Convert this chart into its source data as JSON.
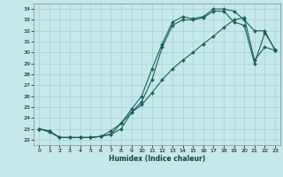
{
  "xlabel": "Humidex (Indice chaleur)",
  "bg_color": "#c5e8e8",
  "grid_color": "#a8d0d0",
  "line_color": "#1a6060",
  "xlim": [
    -0.5,
    23.5
  ],
  "ylim": [
    21.5,
    34.5
  ],
  "xticks": [
    0,
    1,
    2,
    3,
    4,
    5,
    6,
    7,
    8,
    9,
    10,
    11,
    12,
    13,
    14,
    15,
    16,
    17,
    18,
    19,
    20,
    21,
    22,
    23
  ],
  "yticks": [
    22,
    23,
    24,
    25,
    26,
    27,
    28,
    29,
    30,
    31,
    32,
    33,
    34
  ],
  "line1_x": [
    0,
    1,
    2,
    3,
    4,
    5,
    6,
    7,
    8,
    9,
    10,
    11,
    12,
    13,
    14,
    15,
    16,
    17,
    18,
    19,
    20,
    21,
    22,
    23
  ],
  "line1_y": [
    23.0,
    22.8,
    22.2,
    22.2,
    22.2,
    22.2,
    22.3,
    22.5,
    23.5,
    24.8,
    26.0,
    28.5,
    30.8,
    32.8,
    33.3,
    33.1,
    33.3,
    34.0,
    34.0,
    33.8,
    33.0,
    32.0,
    32.0,
    30.2
  ],
  "line2_x": [
    0,
    1,
    2,
    3,
    4,
    5,
    6,
    7,
    8,
    9,
    10,
    11,
    12,
    13,
    14,
    15,
    16,
    17,
    18,
    19,
    20,
    21,
    22,
    23
  ],
  "line2_y": [
    23.0,
    22.7,
    22.2,
    22.2,
    22.2,
    22.2,
    22.3,
    22.5,
    23.0,
    24.5,
    25.5,
    27.5,
    30.5,
    32.5,
    33.0,
    33.0,
    33.2,
    33.8,
    33.8,
    32.8,
    32.5,
    29.0,
    31.8,
    30.3
  ],
  "line3_x": [
    0,
    1,
    2,
    3,
    4,
    5,
    6,
    7,
    8,
    9,
    10,
    11,
    12,
    13,
    14,
    15,
    16,
    17,
    18,
    19,
    20,
    21,
    22,
    23
  ],
  "line3_y": [
    23.0,
    22.8,
    22.2,
    22.2,
    22.2,
    22.2,
    22.3,
    22.8,
    23.5,
    24.5,
    25.2,
    26.3,
    27.5,
    28.5,
    29.3,
    30.0,
    30.8,
    31.5,
    32.3,
    33.0,
    33.2,
    29.3,
    30.5,
    30.2
  ]
}
